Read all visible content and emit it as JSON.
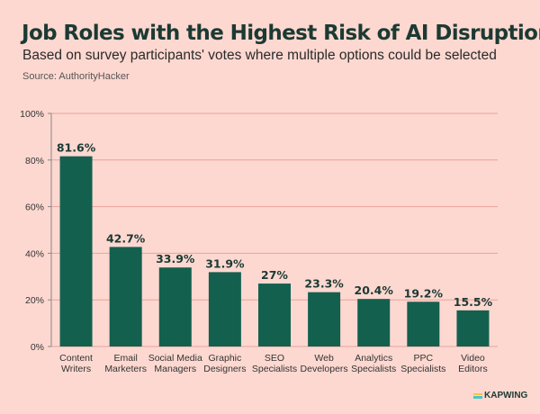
{
  "header": {
    "title": "Job Roles with the Highest Risk of AI Disruption",
    "subtitle": "Based on survey participants' votes where multiple options could be selected",
    "source": "Source: AuthorityHacker"
  },
  "branding": {
    "logo": "KAPWING"
  },
  "colors": {
    "background": "#fdd8d0",
    "bar": "#13604f",
    "grid": "#e8a29b",
    "text": "#1b3a33"
  },
  "chart_data": {
    "type": "bar",
    "categories": [
      [
        "Content",
        "Writers"
      ],
      [
        "Email",
        "Marketers"
      ],
      [
        "Social Media",
        "Managers"
      ],
      [
        "Graphic",
        "Designers"
      ],
      [
        "SEO",
        "Specialists"
      ],
      [
        "Web",
        "Developers"
      ],
      [
        "Analytics",
        "Specialists"
      ],
      [
        "PPC",
        "Specialists"
      ],
      [
        "Video",
        "Editors"
      ]
    ],
    "values": [
      81.6,
      42.7,
      33.9,
      31.9,
      27,
      23.3,
      20.4,
      19.2,
      15.5
    ],
    "data_labels": [
      "81.6%",
      "42.7%",
      "33.9%",
      "31.9%",
      "27%",
      "23.3%",
      "20.4%",
      "19.2%",
      "15.5%"
    ],
    "yticks": [
      0,
      20,
      40,
      60,
      80,
      100
    ],
    "ytick_labels": [
      "0%",
      "20%",
      "40%",
      "60%",
      "80%",
      "100%"
    ],
    "ylim": [
      0,
      100
    ],
    "grid": true,
    "legend": "none"
  }
}
